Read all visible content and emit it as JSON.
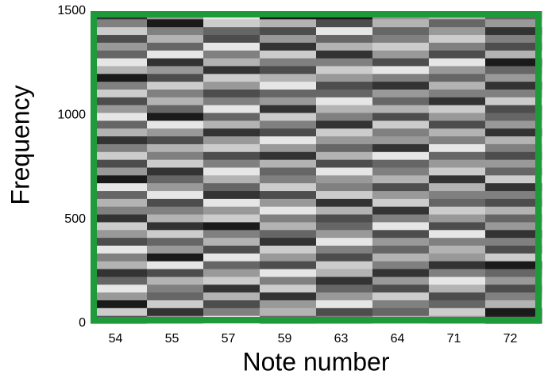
{
  "chart_data": {
    "type": "heatmap",
    "xlabel": "Note number",
    "ylabel": "Frequency",
    "categories": [
      "54",
      "55",
      "57",
      "59",
      "63",
      "64",
      "71",
      "72"
    ],
    "ylim": [
      0,
      1500
    ],
    "yticks": [
      0,
      500,
      1000,
      1500
    ],
    "frame_color": "#1f9a3a",
    "values": [
      [
        0.3,
        0.8,
        0.1,
        0.6,
        0.9,
        0.4,
        0.2,
        0.7,
        0.5,
        0.9,
        0.3,
        0.6,
        0.8,
        0.2,
        0.5,
        0.7,
        0.4,
        0.9,
        0.1,
        0.6,
        0.3,
        0.8,
        0.5,
        0.2,
        0.7,
        0.4,
        0.9,
        0.6,
        0.3,
        0.8,
        0.5,
        0.1,
        0.7,
        0.9,
        0.4,
        0.6,
        0.3,
        0.8,
        0.5,
        0.2
      ],
      [
        0.6,
        0.2,
        0.8,
        0.4,
        0.5,
        0.7,
        0.3,
        0.9,
        0.1,
        0.6,
        0.4,
        0.8,
        0.2,
        0.7,
        0.5,
        0.3,
        0.9,
        0.6,
        0.4,
        0.2,
        0.8,
        0.5,
        0.7,
        0.3,
        0.6,
        0.9,
        0.1,
        0.4,
        0.7,
        0.5,
        0.8,
        0.3,
        0.6,
        0.2,
        0.9,
        0.4,
        0.7,
        0.5,
        0.1,
        0.6
      ],
      [
        0.9,
        0.5,
        0.3,
        0.7,
        0.2,
        0.8,
        0.6,
        0.4,
        0.9,
        0.3,
        0.7,
        0.5,
        0.1,
        0.8,
        0.6,
        0.9,
        0.2,
        0.4,
        0.7,
        0.9,
        0.5,
        0.3,
        0.8,
        0.6,
        0.2,
        0.7,
        0.4,
        0.9,
        0.5,
        0.3,
        0.6,
        0.8,
        0.2,
        0.7,
        0.5,
        0.9,
        0.3,
        0.4,
        0.8,
        0.9
      ],
      [
        0.4,
        0.7,
        0.6,
        0.2,
        0.8,
        0.5,
        0.9,
        0.3,
        0.6,
        0.8,
        0.2,
        0.4,
        0.7,
        0.5,
        0.9,
        0.6,
        0.3,
        0.8,
        0.5,
        0.4,
        0.7,
        0.2,
        0.6,
        0.9,
        0.3,
        0.5,
        0.8,
        0.2,
        0.6,
        0.4,
        0.9,
        0.7,
        0.3,
        0.5,
        0.8,
        0.2,
        0.6,
        0.3,
        0.7,
        0.1
      ],
      [
        0.5,
        0.3,
        0.9,
        0.6,
        0.4,
        0.2,
        0.7,
        0.8,
        0.3,
        0.5,
        0.9,
        0.6,
        0.4,
        0.3,
        0.7,
        0.2,
        0.8,
        0.5,
        0.6,
        0.9,
        0.3,
        0.7,
        0.4,
        0.6,
        0.8,
        0.2,
        0.5,
        0.7,
        0.9,
        0.4,
        0.3,
        0.6,
        0.8,
        0.5,
        0.2,
        0.7,
        0.4,
        0.9,
        0.3,
        0.1
      ],
      [
        0.7,
        0.4,
        0.5,
        0.8,
        0.3,
        0.6,
        0.2,
        0.5,
        0.7,
        0.4,
        0.6,
        0.3,
        0.9,
        0.5,
        0.2,
        0.8,
        0.6,
        0.3,
        0.7,
        0.5,
        0.4,
        0.9,
        0.2,
        0.6,
        0.5,
        0.8,
        0.3,
        0.7,
        0.4,
        0.6,
        0.2,
        0.5,
        0.9,
        0.3,
        0.6,
        0.8,
        0.5,
        0.4,
        0.7,
        0.6
      ],
      [
        0.6,
        0.8,
        0.4,
        0.3,
        0.7,
        0.9,
        0.5,
        0.2,
        0.6,
        0.7,
        0.5,
        0.9,
        0.3,
        0.6,
        0.8,
        0.4,
        0.5,
        0.7,
        0.2,
        0.8,
        0.6,
        0.4,
        0.9,
        0.5,
        0.7,
        0.3,
        0.6,
        0.8,
        0.2,
        0.5,
        0.7,
        0.4,
        0.6,
        0.9,
        0.3,
        0.5,
        0.8,
        0.6,
        0.4,
        0.7
      ],
      [
        0.2,
        0.1,
        0.7,
        0.5,
        0.3,
        0.6,
        0.4,
        0.1,
        0.8,
        0.3,
        0.5,
        0.2,
        0.6,
        0.4,
        0.7,
        0.3,
        0.5,
        0.2,
        0.8,
        0.4,
        0.6,
        0.3,
        0.5,
        0.7,
        0.2,
        0.6,
        0.4,
        0.3,
        0.8,
        0.5,
        0.2,
        0.6,
        0.4,
        0.1,
        0.7,
        0.3,
        0.5,
        0.2,
        0.6,
        0.4
      ]
    ]
  }
}
